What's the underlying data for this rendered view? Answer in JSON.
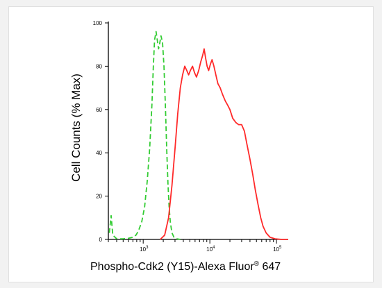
{
  "chart_data": {
    "type": "line",
    "title": "",
    "xlabel_parts": [
      "Phospho-Cdk2 (Y15)-Alexa Fluor",
      "®",
      " 647"
    ],
    "ylabel": "Cell Counts (% Max)",
    "x_scale": "log",
    "xlim": [
      300,
      150000
    ],
    "ylim": [
      0,
      100
    ],
    "x_ticks": [
      {
        "value": 1000,
        "base": "10",
        "exp": "3"
      },
      {
        "value": 10000,
        "base": "10",
        "exp": "4"
      },
      {
        "value": 100000,
        "base": "10",
        "exp": "5"
      }
    ],
    "y_ticks": [
      "0",
      "20",
      "40",
      "60",
      "80",
      "100"
    ],
    "grid": false,
    "series": [
      {
        "color": "#33cc33",
        "dash": "dashed",
        "points": [
          [
            310,
            3
          ],
          [
            330,
            11
          ],
          [
            350,
            2
          ],
          [
            400,
            0.3
          ],
          [
            500,
            0.3
          ],
          [
            600,
            0.5
          ],
          [
            700,
            1
          ],
          [
            780,
            2
          ],
          [
            850,
            4
          ],
          [
            950,
            8
          ],
          [
            1050,
            15
          ],
          [
            1150,
            27
          ],
          [
            1250,
            42
          ],
          [
            1350,
            62
          ],
          [
            1420,
            80
          ],
          [
            1480,
            92
          ],
          [
            1560,
            96
          ],
          [
            1630,
            92
          ],
          [
            1700,
            88
          ],
          [
            1780,
            91
          ],
          [
            1850,
            94
          ],
          [
            1950,
            91
          ],
          [
            2050,
            80
          ],
          [
            2150,
            62
          ],
          [
            2250,
            42
          ],
          [
            2350,
            26
          ],
          [
            2450,
            15
          ],
          [
            2550,
            8
          ],
          [
            2700,
            3
          ],
          [
            2900,
            1
          ],
          [
            3200,
            0.3
          ],
          [
            3600,
            0
          ]
        ]
      },
      {
        "color": "#ff2a2a",
        "dash": "solid",
        "points": [
          [
            1800,
            0
          ],
          [
            2100,
            2
          ],
          [
            2400,
            10
          ],
          [
            2700,
            25
          ],
          [
            3000,
            42
          ],
          [
            3300,
            58
          ],
          [
            3600,
            70
          ],
          [
            3900,
            76
          ],
          [
            4200,
            80
          ],
          [
            4500,
            78
          ],
          [
            4800,
            76
          ],
          [
            5100,
            78
          ],
          [
            5500,
            80
          ],
          [
            5900,
            77
          ],
          [
            6300,
            75
          ],
          [
            6800,
            78
          ],
          [
            7300,
            82
          ],
          [
            7800,
            85
          ],
          [
            8200,
            88
          ],
          [
            8600,
            84
          ],
          [
            9100,
            80
          ],
          [
            9600,
            78
          ],
          [
            10200,
            81
          ],
          [
            10800,
            83
          ],
          [
            11500,
            80
          ],
          [
            12300,
            76
          ],
          [
            13200,
            72
          ],
          [
            14300,
            70
          ],
          [
            15500,
            67
          ],
          [
            17000,
            64
          ],
          [
            18500,
            62
          ],
          [
            20000,
            60
          ],
          [
            22000,
            56
          ],
          [
            24500,
            54
          ],
          [
            27000,
            53
          ],
          [
            30000,
            53
          ],
          [
            33000,
            50
          ],
          [
            36000,
            44
          ],
          [
            40000,
            37
          ],
          [
            44000,
            30
          ],
          [
            48000,
            23
          ],
          [
            53000,
            16
          ],
          [
            58000,
            10
          ],
          [
            63000,
            6
          ],
          [
            70000,
            3
          ],
          [
            80000,
            1
          ],
          [
            95000,
            0.3
          ],
          [
            120000,
            0
          ],
          [
            150000,
            0
          ]
        ]
      }
    ]
  }
}
